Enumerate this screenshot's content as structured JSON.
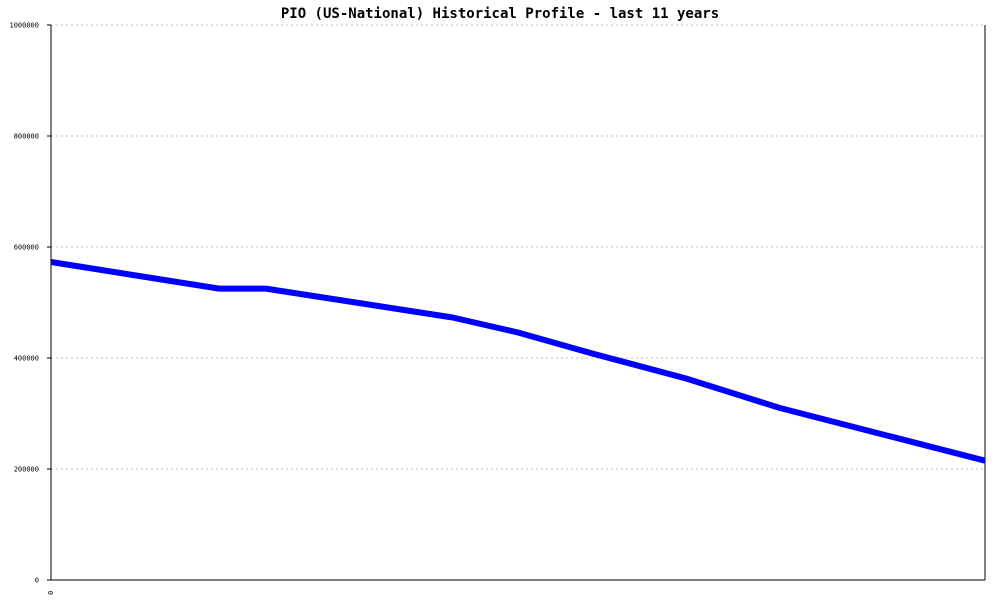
{
  "chart_data": {
    "type": "line",
    "title": "PIO (US-National) Historical Profile - last 11 years",
    "xlabel": "",
    "ylabel": "",
    "x_tick_labels": [
      "0"
    ],
    "y_ticks": [
      0,
      200000,
      400000,
      600000,
      800000,
      1000000
    ],
    "ylim": [
      0,
      1000000
    ],
    "grid": true,
    "series": [
      {
        "color": "#0000ff",
        "x": [
          0,
          0.18,
          0.23,
          0.43,
          0.5,
          0.58,
          0.68,
          0.78,
          1.0
        ],
        "y": [
          573000,
          525000,
          525000,
          473000,
          446000,
          408000,
          363000,
          310000,
          215000
        ]
      }
    ]
  }
}
